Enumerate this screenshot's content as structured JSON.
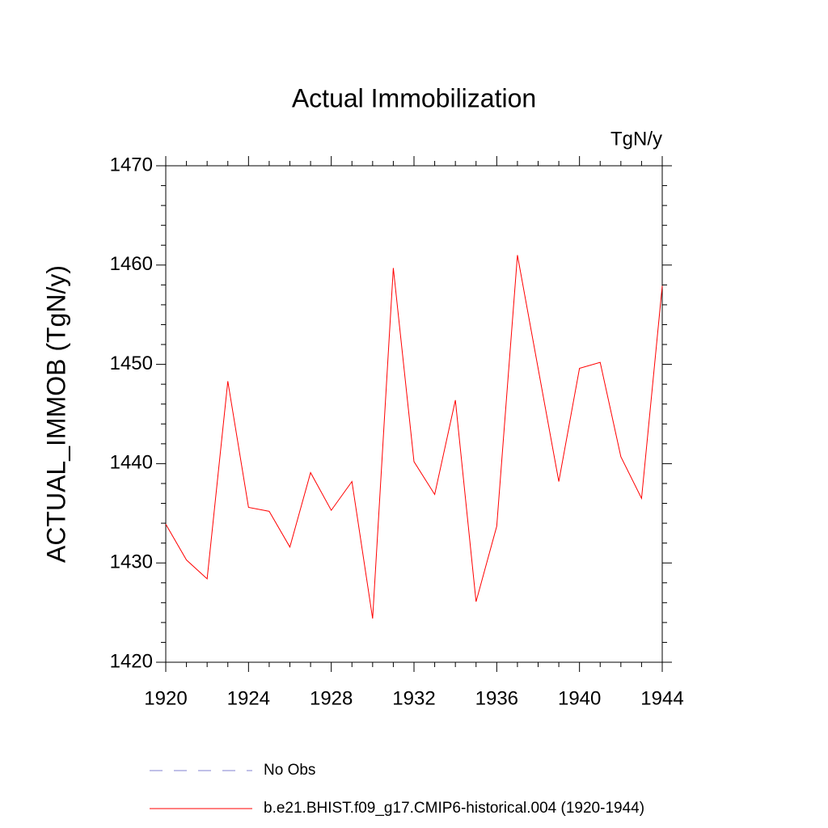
{
  "chart_data": {
    "type": "line",
    "title": "Actual Immobilization",
    "units": "TgN/y",
    "y_label": "ACTUAL_IMMOB  (TgN/y)",
    "x": [
      1920,
      1921,
      1922,
      1923,
      1924,
      1925,
      1926,
      1927,
      1928,
      1929,
      1930,
      1931,
      1932,
      1933,
      1934,
      1935,
      1936,
      1937,
      1938,
      1939,
      1940,
      1941,
      1942,
      1943,
      1944
    ],
    "series": [
      {
        "name": "b.e21.BHIST.f09_g17.CMIP6-historical.004 (1920-1944)",
        "color": "#ff0000",
        "values": [
          1433.9,
          1430.3,
          1428.4,
          1448.3,
          1435.6,
          1435.2,
          1431.6,
          1439.1,
          1435.3,
          1438.2,
          1424.4,
          1459.7,
          1440.2,
          1436.9,
          1446.4,
          1426.1,
          1433.7,
          1461.0,
          1449.6,
          1438.2,
          1449.6,
          1450.2,
          1440.7,
          1436.5,
          1457.9
        ]
      }
    ],
    "reference_legend": {
      "name": "No Obs",
      "color": "#8080d0",
      "dashed": true
    },
    "xlim": [
      1920,
      1944
    ],
    "xticks": [
      1920,
      1924,
      1928,
      1932,
      1936,
      1940,
      1944
    ],
    "ylim": [
      1420,
      1470
    ],
    "yticks": [
      1420,
      1430,
      1440,
      1450,
      1460,
      1470
    ]
  }
}
